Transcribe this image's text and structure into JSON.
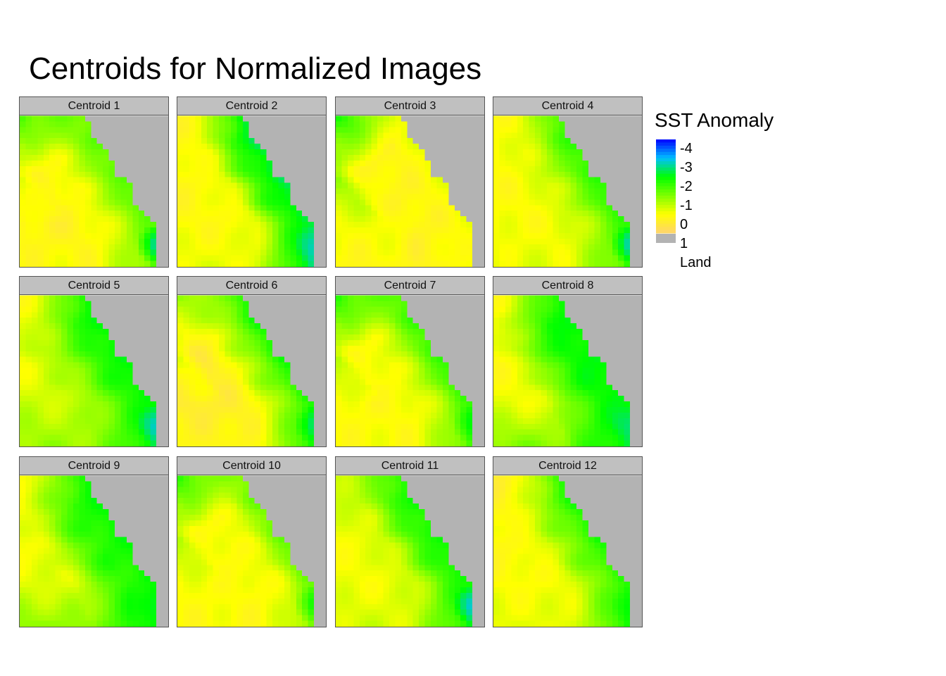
{
  "chart_data": {
    "type": "heatmap",
    "title": "Centroids for Normalized Images",
    "panels": [
      {
        "label": "Centroid 1",
        "profile": [
          -1.6,
          -0.2,
          0.6,
          0.3,
          -0.5,
          -1.2
        ],
        "blue_corner": -4.0,
        "nw_anomaly": -1.6
      },
      {
        "label": "Centroid 2",
        "profile": [
          0.7,
          0.5,
          0.4,
          0.0,
          -1.5,
          -2.5
        ],
        "blue_corner": -3.5,
        "nw_anomaly": 0.5
      },
      {
        "label": "Centroid 3",
        "profile": [
          -1.8,
          -0.8,
          0.2,
          0.6,
          0.5,
          0.2
        ],
        "blue_corner": 0.2,
        "nw_anomaly": -2.0
      },
      {
        "label": "Centroid 4",
        "profile": [
          0.5,
          0.4,
          0.3,
          0.0,
          -0.8,
          -1.6
        ],
        "blue_corner": -4.0,
        "nw_anomaly": 0.4
      },
      {
        "label": "Centroid 5",
        "profile": [
          0.5,
          0.3,
          -0.2,
          -0.8,
          -1.6,
          -2.2
        ],
        "blue_corner": -3.8,
        "nw_anomaly": 0.4
      },
      {
        "label": "Centroid 6",
        "profile": [
          -0.6,
          0.0,
          0.8,
          0.4,
          -0.8,
          -1.8
        ],
        "blue_corner": -3.6,
        "nw_anomaly": -0.8
      },
      {
        "label": "Centroid 7",
        "profile": [
          -1.8,
          -0.6,
          0.4,
          0.3,
          -0.5,
          -1.5
        ],
        "blue_corner": -2.8,
        "nw_anomaly": -1.9
      },
      {
        "label": "Centroid 8",
        "profile": [
          0.6,
          0.5,
          0.1,
          -1.2,
          -1.9,
          -2.2
        ],
        "blue_corner": -3.0,
        "nw_anomaly": 0.4
      },
      {
        "label": "Centroid 9",
        "profile": [
          0.5,
          0.4,
          0.0,
          -1.0,
          -1.8,
          -2.0
        ],
        "blue_corner": -2.8,
        "nw_anomaly": 0.3
      },
      {
        "label": "Centroid 10",
        "profile": [
          -1.5,
          -0.6,
          0.3,
          0.4,
          0.0,
          -1.0
        ],
        "blue_corner": -2.8,
        "nw_anomaly": -1.8
      },
      {
        "label": "Centroid 11",
        "profile": [
          0.3,
          0.2,
          0.2,
          -0.2,
          -1.3,
          -2.0
        ],
        "blue_corner": -4.0,
        "nw_anomaly": -0.4
      },
      {
        "label": "Centroid 12",
        "profile": [
          0.8,
          0.6,
          0.3,
          0.0,
          -1.0,
          -1.8
        ],
        "blue_corner": -2.8,
        "nw_anomaly": 0.8
      }
    ],
    "legend": {
      "title": "SST Anomaly",
      "ticks": [
        "-4",
        "-3",
        "-2",
        "-1",
        "0",
        "1",
        "Land"
      ],
      "range": [
        -4.5,
        1.5
      ],
      "colors": [
        "#0000ff",
        "#00bfff",
        "#00ff00",
        "#7fff00",
        "#ffff00",
        "#ffd36f"
      ],
      "land_color": "#b3b3b3"
    }
  }
}
